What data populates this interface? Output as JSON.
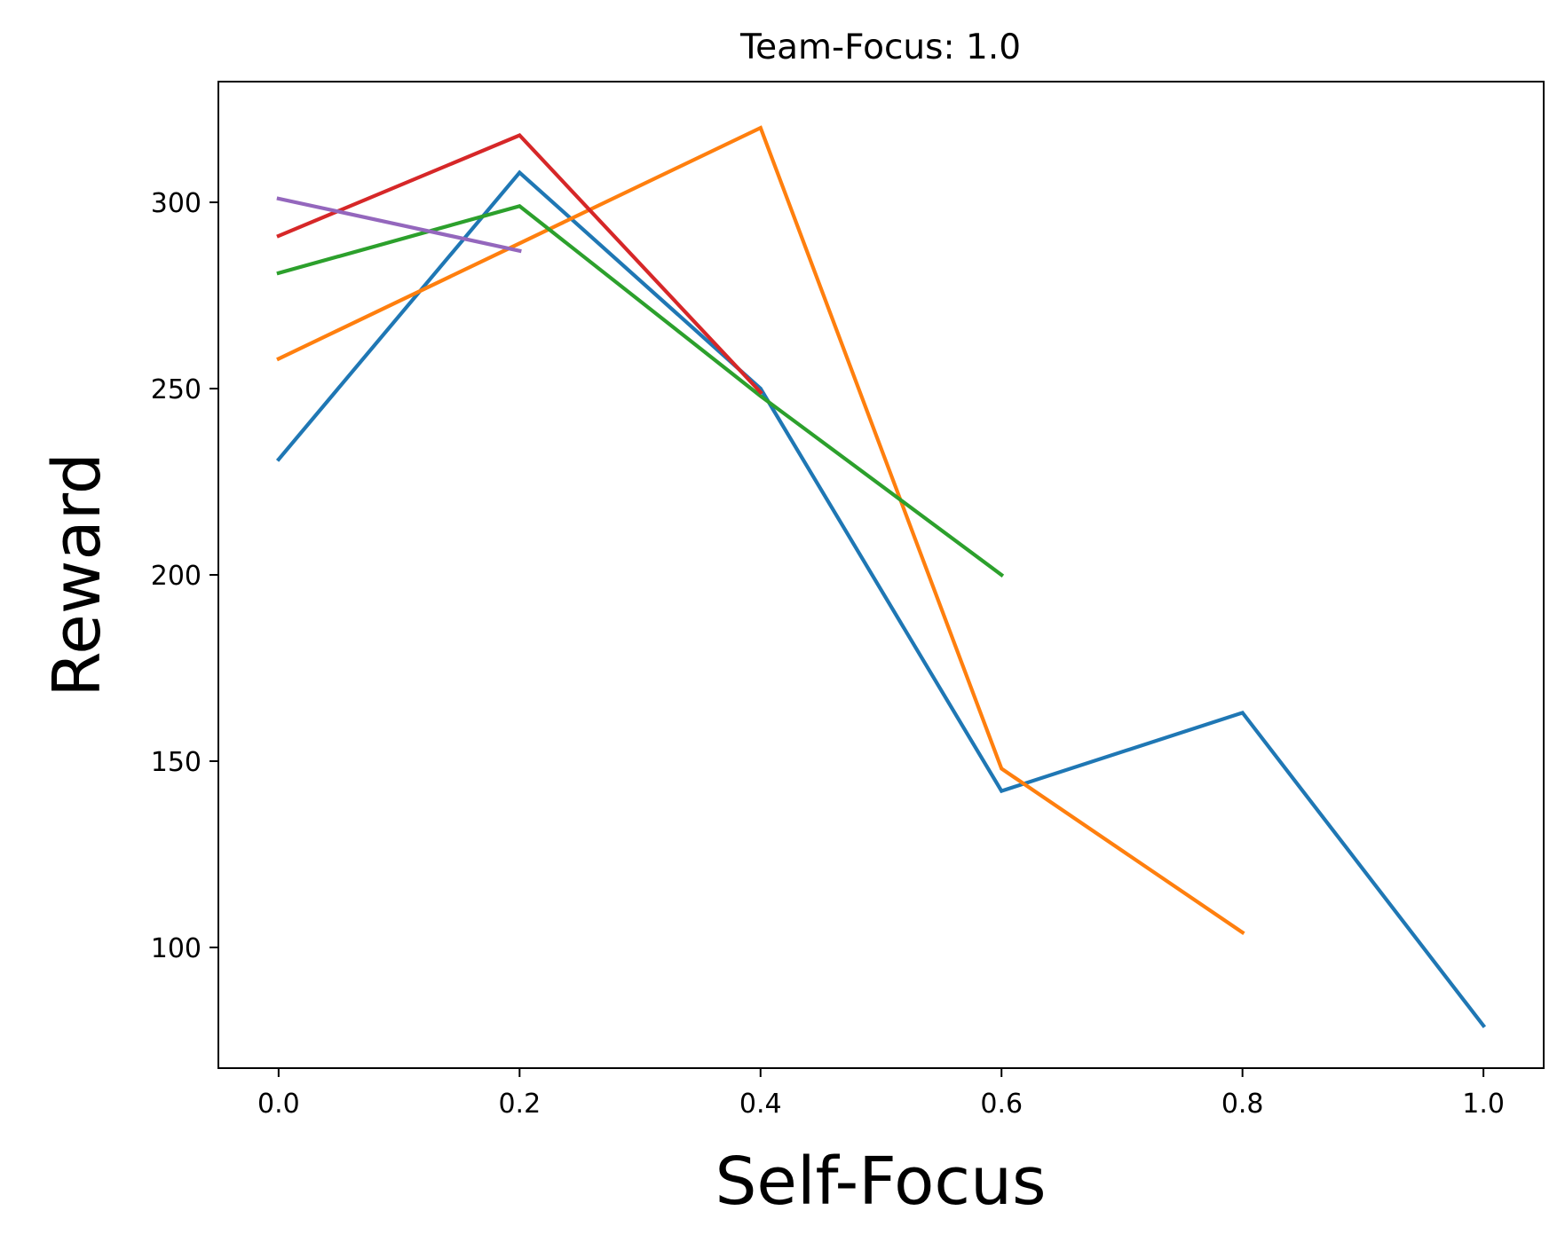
{
  "chart_data": {
    "type": "line",
    "title": "Team-Focus: 1.0",
    "xlabel": "Self-Focus",
    "ylabel": "Reward",
    "xlim": [
      -0.05,
      1.05
    ],
    "ylim": [
      67.6,
      332.4
    ],
    "xticks": [
      0.0,
      0.2,
      0.4,
      0.6,
      0.8,
      1.0
    ],
    "xtick_labels": [
      "0.0",
      "0.2",
      "0.4",
      "0.6",
      "0.8",
      "1.0"
    ],
    "yticks": [
      100,
      150,
      200,
      250,
      300
    ],
    "ytick_labels": [
      "100",
      "150",
      "200",
      "250",
      "300"
    ],
    "grid": false,
    "legend": "none",
    "series": [
      {
        "color": "#1f77b4",
        "x": [
          0.0,
          0.2,
          0.4,
          0.6,
          0.8,
          1.0
        ],
        "y": [
          231,
          308,
          250,
          142,
          163,
          79
        ]
      },
      {
        "color": "#ff7f0e",
        "x": [
          0.0,
          0.2,
          0.4,
          0.6,
          0.8
        ],
        "y": [
          258,
          289,
          320,
          148,
          104
        ]
      },
      {
        "color": "#2ca02c",
        "x": [
          0.0,
          0.2,
          0.4,
          0.6
        ],
        "y": [
          281,
          299,
          248,
          200
        ]
      },
      {
        "color": "#d62728",
        "x": [
          0.0,
          0.2,
          0.4
        ],
        "y": [
          291,
          318,
          249
        ]
      },
      {
        "color": "#9467bd",
        "x": [
          0.0,
          0.2
        ],
        "y": [
          301,
          287
        ]
      }
    ]
  }
}
